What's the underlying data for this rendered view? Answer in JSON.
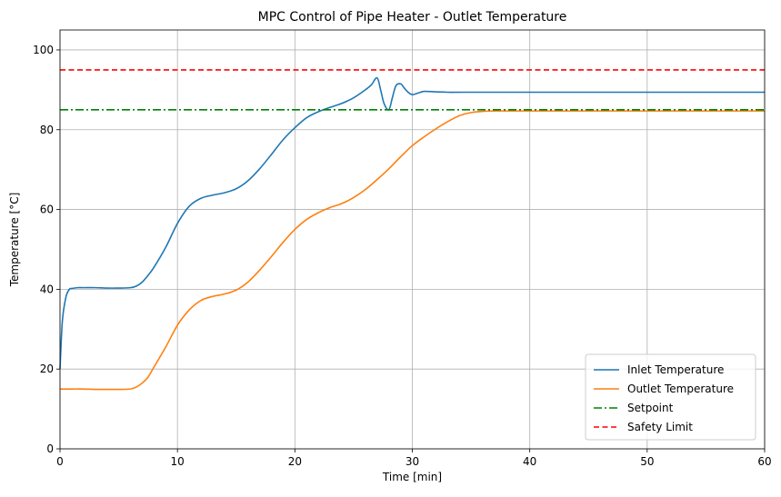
{
  "chart_data": {
    "type": "line",
    "title": "MPC Control of Pipe Heater - Outlet Temperature",
    "xlabel": "Time [min]",
    "ylabel": "Temperature [°C]",
    "xlim": [
      0,
      60
    ],
    "ylim": [
      0,
      105
    ],
    "xticks": [
      0,
      10,
      20,
      30,
      40,
      50,
      60
    ],
    "yticks": [
      0,
      20,
      40,
      60,
      80,
      100
    ],
    "grid": true,
    "legend_position": "lower-right",
    "series": [
      {
        "name": "Inlet Temperature",
        "color": "#1f77b4",
        "style": "solid",
        "x": [
          0,
          0.2,
          0.5,
          0.8,
          1,
          1.5,
          2,
          3,
          4,
          5,
          6,
          6.5,
          7,
          7.5,
          8,
          9,
          10,
          11,
          12,
          13,
          14,
          15,
          16,
          17,
          18,
          19,
          20,
          21,
          22,
          23,
          24,
          25,
          26,
          26.5,
          27,
          27.3,
          27.6,
          28,
          28.3,
          28.6,
          29,
          29.3,
          29.6,
          30,
          30.5,
          31,
          32,
          33,
          35,
          40,
          45,
          50,
          55,
          60
        ],
        "y": [
          20,
          32,
          38,
          40,
          40.2,
          40.4,
          40.4,
          40.4,
          40.3,
          40.3,
          40.4,
          40.8,
          41.8,
          43.5,
          45.5,
          50.5,
          56.5,
          60.8,
          62.8,
          63.6,
          64.2,
          65.2,
          67.2,
          70.2,
          73.8,
          77.5,
          80.5,
          83,
          84.5,
          85.6,
          86.6,
          88,
          90,
          91.2,
          93,
          90,
          86.5,
          85,
          88,
          91,
          91.5,
          90.5,
          89.5,
          88.8,
          89.2,
          89.6,
          89.5,
          89.4,
          89.4,
          89.4,
          89.4,
          89.4,
          89.4,
          89.4
        ]
      },
      {
        "name": "Outlet Temperature",
        "color": "#ff7f0e",
        "style": "solid",
        "x": [
          0,
          1,
          2,
          3,
          4,
          5,
          6,
          6.5,
          7,
          7.5,
          8,
          9,
          10,
          11,
          12,
          13,
          14,
          15,
          16,
          17,
          18,
          19,
          20,
          21,
          22,
          23,
          24,
          25,
          26,
          27,
          28,
          29,
          30,
          31,
          32,
          33,
          34,
          35,
          36,
          37,
          38,
          40,
          45,
          50,
          55,
          60
        ],
        "y": [
          15,
          15,
          15,
          14.9,
          14.9,
          14.9,
          15,
          15.5,
          16.5,
          18,
          20.5,
          25.5,
          31,
          34.8,
          37.2,
          38.2,
          38.8,
          39.8,
          41.8,
          44.8,
          48.2,
          51.8,
          55,
          57.5,
          59.2,
          60.5,
          61.5,
          63,
          65,
          67.5,
          70.2,
          73.2,
          76,
          78.2,
          80.2,
          82,
          83.5,
          84.3,
          84.6,
          84.7,
          84.7,
          84.7,
          84.7,
          84.7,
          84.7,
          84.7
        ]
      },
      {
        "name": "Setpoint",
        "color": "#008000",
        "style": "dashdot",
        "x": [
          0,
          60
        ],
        "y": [
          85,
          85
        ]
      },
      {
        "name": "Safety Limit",
        "color": "#ff0000",
        "style": "dashed",
        "x": [
          0,
          60
        ],
        "y": [
          95,
          95
        ]
      }
    ]
  }
}
